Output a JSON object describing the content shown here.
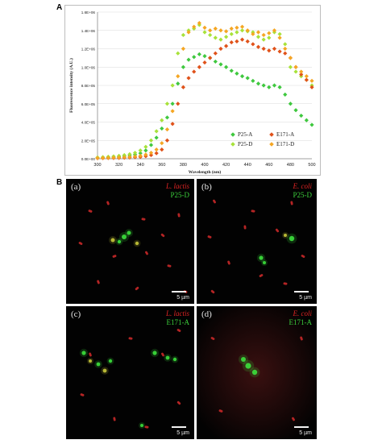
{
  "panel_labels": {
    "a": "A",
    "b": "B"
  },
  "chart_data": {
    "type": "scatter",
    "title": "",
    "xlabel": "Wavelength (nm)",
    "ylabel": "Fluorescence intensity (A.U.)",
    "xlim": [
      300,
      500
    ],
    "ylim": [
      0,
      1600000
    ],
    "x_ticks": [
      "300",
      "320",
      "340",
      "360",
      "380",
      "400",
      "420",
      "440",
      "460",
      "480",
      "500"
    ],
    "y_ticks": [
      "0.0E+00",
      "2.0E+05",
      "4.0E+05",
      "6.0E+05",
      "8.0E+05",
      "1.0E+06",
      "1.2E+06",
      "1.4E+06",
      "1.6E+06"
    ],
    "legend_position": "bottom-right",
    "grid": "horizontal",
    "series": [
      {
        "name": "P25-A",
        "color": "#3fc83f",
        "points": [
          [
            300,
            10000
          ],
          [
            305,
            12000
          ],
          [
            310,
            15000
          ],
          [
            315,
            18000
          ],
          [
            320,
            22000
          ],
          [
            325,
            28000
          ],
          [
            330,
            35000
          ],
          [
            335,
            45000
          ],
          [
            340,
            60000
          ],
          [
            345,
            90000
          ],
          [
            350,
            150000
          ],
          [
            355,
            230000
          ],
          [
            360,
            330000
          ],
          [
            365,
            450000
          ],
          [
            370,
            600000
          ],
          [
            375,
            820000
          ],
          [
            380,
            1000000
          ],
          [
            385,
            1080000
          ],
          [
            390,
            1110000
          ],
          [
            395,
            1140000
          ],
          [
            400,
            1120000
          ],
          [
            405,
            1100000
          ],
          [
            410,
            1060000
          ],
          [
            415,
            1030000
          ],
          [
            420,
            1000000
          ],
          [
            425,
            960000
          ],
          [
            430,
            930000
          ],
          [
            435,
            900000
          ],
          [
            440,
            880000
          ],
          [
            445,
            850000
          ],
          [
            450,
            820000
          ],
          [
            455,
            800000
          ],
          [
            460,
            780000
          ],
          [
            465,
            800000
          ],
          [
            470,
            780000
          ],
          [
            475,
            700000
          ],
          [
            480,
            600000
          ],
          [
            485,
            530000
          ],
          [
            490,
            470000
          ],
          [
            495,
            420000
          ],
          [
            500,
            370000
          ]
        ]
      },
      {
        "name": "P25-D",
        "color": "#a8e23a",
        "points": [
          [
            300,
            15000
          ],
          [
            305,
            18000
          ],
          [
            310,
            22000
          ],
          [
            315,
            26000
          ],
          [
            320,
            32000
          ],
          [
            325,
            40000
          ],
          [
            330,
            50000
          ],
          [
            335,
            65000
          ],
          [
            340,
            90000
          ],
          [
            345,
            130000
          ],
          [
            350,
            200000
          ],
          [
            355,
            300000
          ],
          [
            360,
            420000
          ],
          [
            365,
            600000
          ],
          [
            370,
            800000
          ],
          [
            375,
            1150000
          ],
          [
            380,
            1350000
          ],
          [
            385,
            1400000
          ],
          [
            390,
            1420000
          ],
          [
            395,
            1460000
          ],
          [
            400,
            1380000
          ],
          [
            405,
            1350000
          ],
          [
            410,
            1320000
          ],
          [
            415,
            1300000
          ],
          [
            420,
            1330000
          ],
          [
            425,
            1360000
          ],
          [
            430,
            1380000
          ],
          [
            435,
            1400000
          ],
          [
            440,
            1390000
          ],
          [
            445,
            1380000
          ],
          [
            450,
            1330000
          ],
          [
            455,
            1300000
          ],
          [
            460,
            1320000
          ],
          [
            465,
            1380000
          ],
          [
            470,
            1360000
          ],
          [
            475,
            1250000
          ],
          [
            480,
            1000000
          ],
          [
            485,
            950000
          ],
          [
            490,
            900000
          ],
          [
            495,
            860000
          ],
          [
            500,
            800000
          ]
        ]
      },
      {
        "name": "E171-A",
        "color": "#e0521a",
        "points": [
          [
            300,
            5000
          ],
          [
            305,
            6000
          ],
          [
            310,
            7000
          ],
          [
            315,
            8000
          ],
          [
            320,
            9000
          ],
          [
            325,
            11000
          ],
          [
            330,
            13000
          ],
          [
            335,
            16000
          ],
          [
            340,
            20000
          ],
          [
            345,
            28000
          ],
          [
            350,
            40000
          ],
          [
            355,
            60000
          ],
          [
            360,
            100000
          ],
          [
            365,
            200000
          ],
          [
            370,
            380000
          ],
          [
            375,
            600000
          ],
          [
            380,
            780000
          ],
          [
            385,
            880000
          ],
          [
            390,
            950000
          ],
          [
            395,
            1000000
          ],
          [
            400,
            1050000
          ],
          [
            405,
            1100000
          ],
          [
            410,
            1150000
          ],
          [
            415,
            1200000
          ],
          [
            420,
            1230000
          ],
          [
            425,
            1270000
          ],
          [
            430,
            1280000
          ],
          [
            435,
            1300000
          ],
          [
            440,
            1280000
          ],
          [
            445,
            1250000
          ],
          [
            450,
            1220000
          ],
          [
            455,
            1200000
          ],
          [
            460,
            1180000
          ],
          [
            465,
            1200000
          ],
          [
            470,
            1170000
          ],
          [
            475,
            1150000
          ],
          [
            480,
            1100000
          ],
          [
            485,
            1000000
          ],
          [
            490,
            920000
          ],
          [
            495,
            860000
          ],
          [
            500,
            780000
          ]
        ]
      },
      {
        "name": "E171-D",
        "color": "#f5a623",
        "points": [
          [
            300,
            8000
          ],
          [
            305,
            9000
          ],
          [
            310,
            10000
          ],
          [
            315,
            12000
          ],
          [
            320,
            14000
          ],
          [
            325,
            17000
          ],
          [
            330,
            20000
          ],
          [
            335,
            25000
          ],
          [
            340,
            32000
          ],
          [
            345,
            45000
          ],
          [
            350,
            65000
          ],
          [
            355,
            100000
          ],
          [
            360,
            170000
          ],
          [
            365,
            320000
          ],
          [
            370,
            520000
          ],
          [
            375,
            900000
          ],
          [
            380,
            1200000
          ],
          [
            385,
            1380000
          ],
          [
            390,
            1440000
          ],
          [
            395,
            1480000
          ],
          [
            400,
            1430000
          ],
          [
            405,
            1400000
          ],
          [
            410,
            1420000
          ],
          [
            415,
            1400000
          ],
          [
            420,
            1390000
          ],
          [
            425,
            1420000
          ],
          [
            430,
            1430000
          ],
          [
            435,
            1440000
          ],
          [
            440,
            1400000
          ],
          [
            445,
            1360000
          ],
          [
            450,
            1380000
          ],
          [
            455,
            1350000
          ],
          [
            460,
            1370000
          ],
          [
            465,
            1400000
          ],
          [
            470,
            1320000
          ],
          [
            475,
            1200000
          ],
          [
            480,
            1100000
          ],
          [
            485,
            1000000
          ],
          [
            490,
            950000
          ],
          [
            495,
            900000
          ],
          [
            500,
            850000
          ]
        ]
      }
    ]
  },
  "micrographs": [
    {
      "letter": "(a)",
      "species": "L. lactis",
      "sample": "P25-D",
      "scale": "5 µm"
    },
    {
      "letter": "(b)",
      "species": "E. coli",
      "sample": "P25-D",
      "scale": "5 µm"
    },
    {
      "letter": "(c)",
      "species": "L. lactis",
      "sample": "E171-A",
      "scale": "5 µm"
    },
    {
      "letter": "(d)",
      "species": "E. coli",
      "sample": "E171-A",
      "scale": "5 µm"
    }
  ],
  "colors": {
    "bacteria_red": "#d42a2a",
    "nanoparticle_green": "#3ce03c",
    "yellow_overlap": "#c8c83a",
    "background": "#020202",
    "panel_d_tint": "#3a1010"
  }
}
